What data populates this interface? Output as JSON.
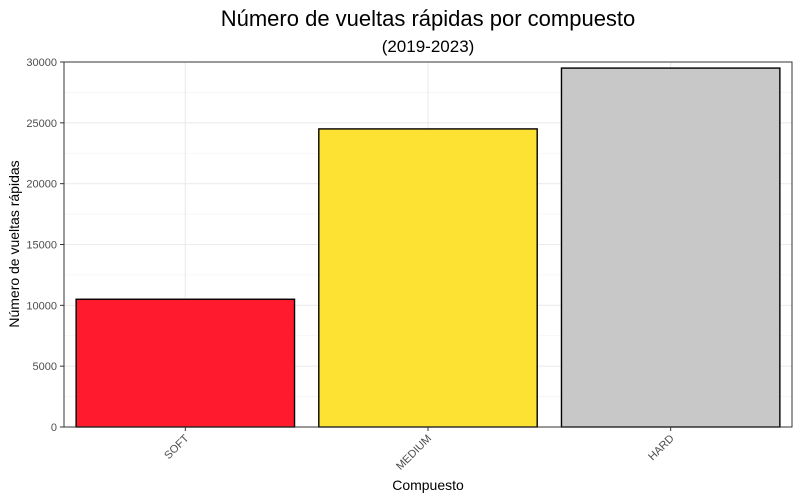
{
  "chart_data": {
    "type": "bar",
    "title": "Número de vueltas rápidas por compuesto",
    "subtitle": "(2019-2023)",
    "xlabel": "Compuesto",
    "ylabel": "Número de vueltas rápidas",
    "categories": [
      "SOFT",
      "MEDIUM",
      "HARD"
    ],
    "values": [
      10500,
      24500,
      29500
    ],
    "colors": [
      "#ff1a2e",
      "#fde233",
      "#c8c8c8"
    ],
    "ylim": [
      0,
      30000
    ],
    "yticks": [
      0,
      5000,
      10000,
      15000,
      20000,
      25000,
      30000
    ],
    "ytick_labels": [
      "0",
      "5000",
      "10000",
      "15000",
      "20000",
      "25000",
      "30000"
    ],
    "grid": true,
    "legend": "none"
  }
}
